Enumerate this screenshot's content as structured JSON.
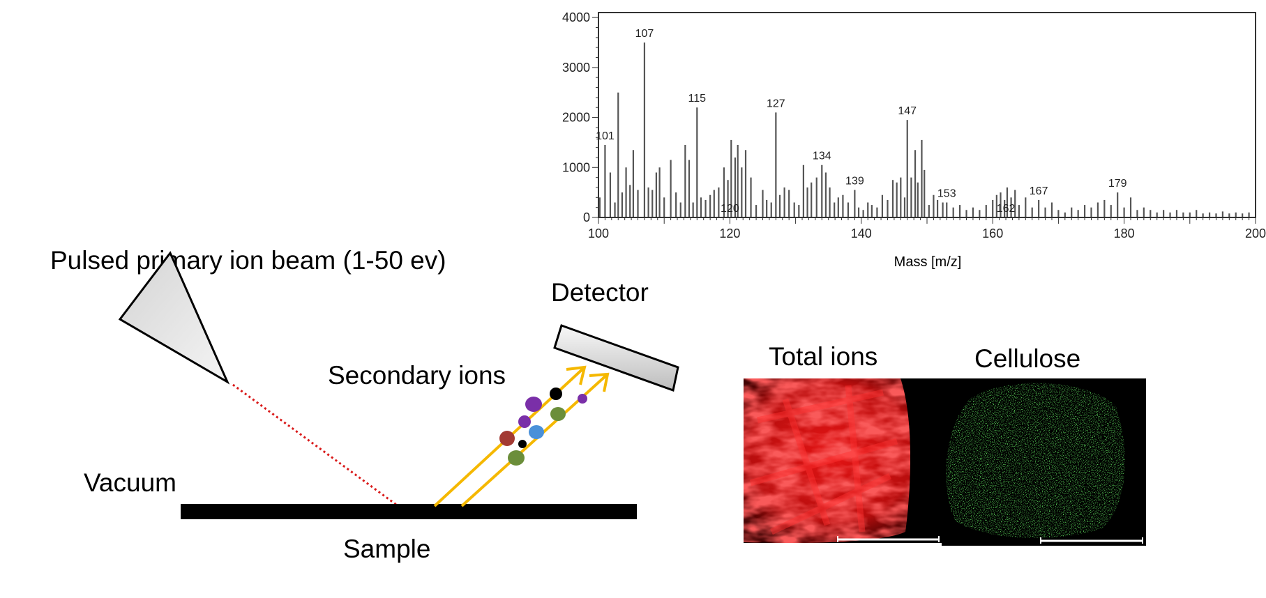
{
  "labels": {
    "beam": "Pulsed primary ion beam (1-50 ev)",
    "detector": "Detector",
    "secondary": "Secondary ions",
    "vacuum": "Vacuum",
    "sample": "Sample",
    "total_ions": "Total ions",
    "cellulose": "Cellulose"
  },
  "colors": {
    "beam_dotted": "#d91a1a",
    "ion_arrows": "#f5b800",
    "total_ions_image": "#e01010",
    "cellulose_image": "#22a020",
    "ions": [
      "#7a2fa8",
      "#000000",
      "#6b8e3a",
      "#a33a33",
      "#4a90d9"
    ]
  },
  "chart_data": {
    "type": "bar",
    "xlabel": "Mass [m/z]",
    "ylabel": "",
    "xlim": [
      100,
      200
    ],
    "ylim": [
      0,
      4100
    ],
    "x_ticks": [
      100,
      120,
      140,
      160,
      180,
      200
    ],
    "x_tick_labels": [
      "100",
      "120",
      "140",
      "160",
      "180",
      "200"
    ],
    "y_ticks": [
      0,
      1000,
      2000,
      3000,
      4000
    ],
    "y_tick_labels": [
      "0",
      "1000",
      "2000",
      "3000",
      "4000"
    ],
    "labeled_peaks": [
      {
        "mz": 101,
        "label": "101"
      },
      {
        "mz": 107,
        "label": "107"
      },
      {
        "mz": 115,
        "label": "115"
      },
      {
        "mz": 120,
        "label": "120"
      },
      {
        "mz": 127,
        "label": "127"
      },
      {
        "mz": 134,
        "label": "134"
      },
      {
        "mz": 139,
        "label": "139"
      },
      {
        "mz": 147,
        "label": "147"
      },
      {
        "mz": 153,
        "label": "153"
      },
      {
        "mz": 162,
        "label": "162"
      },
      {
        "mz": 167,
        "label": "167"
      },
      {
        "mz": 179,
        "label": "179"
      }
    ],
    "peaks": [
      {
        "mz": 100.2,
        "v": 400
      },
      {
        "mz": 101.0,
        "v": 1450
      },
      {
        "mz": 101.8,
        "v": 900
      },
      {
        "mz": 102.5,
        "v": 300
      },
      {
        "mz": 103.0,
        "v": 2500
      },
      {
        "mz": 103.6,
        "v": 500
      },
      {
        "mz": 104.2,
        "v": 1000
      },
      {
        "mz": 104.8,
        "v": 650
      },
      {
        "mz": 105.3,
        "v": 1350
      },
      {
        "mz": 106.0,
        "v": 550
      },
      {
        "mz": 107.0,
        "v": 3500
      },
      {
        "mz": 107.6,
        "v": 600
      },
      {
        "mz": 108.2,
        "v": 550
      },
      {
        "mz": 108.8,
        "v": 900
      },
      {
        "mz": 109.3,
        "v": 1000
      },
      {
        "mz": 110.0,
        "v": 400
      },
      {
        "mz": 111.0,
        "v": 1150
      },
      {
        "mz": 111.8,
        "v": 500
      },
      {
        "mz": 112.5,
        "v": 300
      },
      {
        "mz": 113.2,
        "v": 1450
      },
      {
        "mz": 113.8,
        "v": 1150
      },
      {
        "mz": 114.4,
        "v": 300
      },
      {
        "mz": 115.0,
        "v": 2200
      },
      {
        "mz": 115.6,
        "v": 400
      },
      {
        "mz": 116.3,
        "v": 350
      },
      {
        "mz": 117.0,
        "v": 450
      },
      {
        "mz": 117.6,
        "v": 550
      },
      {
        "mz": 118.3,
        "v": 600
      },
      {
        "mz": 119.1,
        "v": 1000
      },
      {
        "mz": 119.7,
        "v": 750
      },
      {
        "mz": 120.2,
        "v": 1550
      },
      {
        "mz": 120.8,
        "v": 1200
      },
      {
        "mz": 121.2,
        "v": 1450
      },
      {
        "mz": 121.8,
        "v": 1000
      },
      {
        "mz": 122.4,
        "v": 1350
      },
      {
        "mz": 123.2,
        "v": 800
      },
      {
        "mz": 124.0,
        "v": 250
      },
      {
        "mz": 125.0,
        "v": 550
      },
      {
        "mz": 125.6,
        "v": 350
      },
      {
        "mz": 126.3,
        "v": 300
      },
      {
        "mz": 127.0,
        "v": 2100
      },
      {
        "mz": 127.6,
        "v": 450
      },
      {
        "mz": 128.3,
        "v": 600
      },
      {
        "mz": 129.0,
        "v": 550
      },
      {
        "mz": 129.8,
        "v": 300
      },
      {
        "mz": 130.5,
        "v": 250
      },
      {
        "mz": 131.2,
        "v": 1050
      },
      {
        "mz": 131.8,
        "v": 600
      },
      {
        "mz": 132.4,
        "v": 700
      },
      {
        "mz": 133.2,
        "v": 800
      },
      {
        "mz": 134.0,
        "v": 1050
      },
      {
        "mz": 134.6,
        "v": 900
      },
      {
        "mz": 135.2,
        "v": 600
      },
      {
        "mz": 135.9,
        "v": 300
      },
      {
        "mz": 136.5,
        "v": 400
      },
      {
        "mz": 137.2,
        "v": 450
      },
      {
        "mz": 138.0,
        "v": 300
      },
      {
        "mz": 139.0,
        "v": 550
      },
      {
        "mz": 139.6,
        "v": 200
      },
      {
        "mz": 140.3,
        "v": 150
      },
      {
        "mz": 141.0,
        "v": 300
      },
      {
        "mz": 141.6,
        "v": 250
      },
      {
        "mz": 142.4,
        "v": 200
      },
      {
        "mz": 143.2,
        "v": 450
      },
      {
        "mz": 144.0,
        "v": 350
      },
      {
        "mz": 144.8,
        "v": 750
      },
      {
        "mz": 145.4,
        "v": 700
      },
      {
        "mz": 146.0,
        "v": 800
      },
      {
        "mz": 146.6,
        "v": 400
      },
      {
        "mz": 147.0,
        "v": 1950
      },
      {
        "mz": 147.6,
        "v": 800
      },
      {
        "mz": 148.2,
        "v": 1350
      },
      {
        "mz": 148.6,
        "v": 700
      },
      {
        "mz": 149.2,
        "v": 1550
      },
      {
        "mz": 149.6,
        "v": 950
      },
      {
        "mz": 150.3,
        "v": 250
      },
      {
        "mz": 151.0,
        "v": 450
      },
      {
        "mz": 151.6,
        "v": 350
      },
      {
        "mz": 152.4,
        "v": 300
      },
      {
        "mz": 153.0,
        "v": 300
      },
      {
        "mz": 154.0,
        "v": 200
      },
      {
        "mz": 155.0,
        "v": 250
      },
      {
        "mz": 156.0,
        "v": 150
      },
      {
        "mz": 157.0,
        "v": 200
      },
      {
        "mz": 158.0,
        "v": 150
      },
      {
        "mz": 159.0,
        "v": 250
      },
      {
        "mz": 160.0,
        "v": 350
      },
      {
        "mz": 160.6,
        "v": 450
      },
      {
        "mz": 161.2,
        "v": 500
      },
      {
        "mz": 161.8,
        "v": 350
      },
      {
        "mz": 162.2,
        "v": 600
      },
      {
        "mz": 162.8,
        "v": 400
      },
      {
        "mz": 163.4,
        "v": 550
      },
      {
        "mz": 164.0,
        "v": 250
      },
      {
        "mz": 165.0,
        "v": 400
      },
      {
        "mz": 166.0,
        "v": 200
      },
      {
        "mz": 167.0,
        "v": 350
      },
      {
        "mz": 168.0,
        "v": 200
      },
      {
        "mz": 169.0,
        "v": 300
      },
      {
        "mz": 170.0,
        "v": 150
      },
      {
        "mz": 171.0,
        "v": 100
      },
      {
        "mz": 172.0,
        "v": 200
      },
      {
        "mz": 173.0,
        "v": 150
      },
      {
        "mz": 174.0,
        "v": 250
      },
      {
        "mz": 175.0,
        "v": 200
      },
      {
        "mz": 176.0,
        "v": 300
      },
      {
        "mz": 177.0,
        "v": 350
      },
      {
        "mz": 178.0,
        "v": 250
      },
      {
        "mz": 179.0,
        "v": 500
      },
      {
        "mz": 180.0,
        "v": 200
      },
      {
        "mz": 181.0,
        "v": 400
      },
      {
        "mz": 182.0,
        "v": 150
      },
      {
        "mz": 183.0,
        "v": 200
      },
      {
        "mz": 184.0,
        "v": 150
      },
      {
        "mz": 185.0,
        "v": 100
      },
      {
        "mz": 186.0,
        "v": 150
      },
      {
        "mz": 187.0,
        "v": 100
      },
      {
        "mz": 188.0,
        "v": 150
      },
      {
        "mz": 189.0,
        "v": 100
      },
      {
        "mz": 190.0,
        "v": 100
      },
      {
        "mz": 191.0,
        "v": 150
      },
      {
        "mz": 192.0,
        "v": 80
      },
      {
        "mz": 193.0,
        "v": 100
      },
      {
        "mz": 194.0,
        "v": 80
      },
      {
        "mz": 195.0,
        "v": 120
      },
      {
        "mz": 196.0,
        "v": 80
      },
      {
        "mz": 197.0,
        "v": 100
      },
      {
        "mz": 198.0,
        "v": 80
      },
      {
        "mz": 199.0,
        "v": 100
      }
    ]
  }
}
